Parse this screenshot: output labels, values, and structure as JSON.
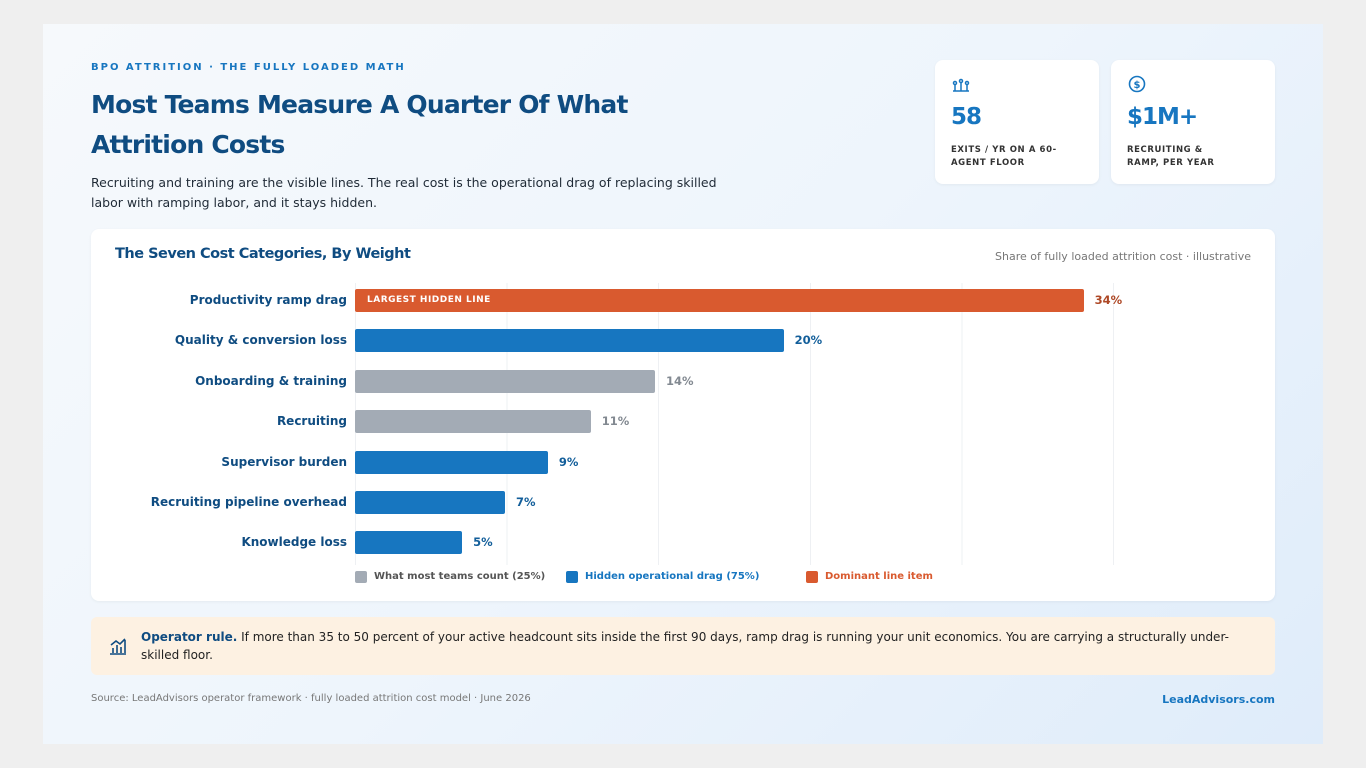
{
  "header": {
    "eyebrow": "BPO ATTRITION · THE FULLY LOADED MATH",
    "title": "Most Teams Measure A Quarter Of What Attrition Costs",
    "subtitle": "Recruiting and training are the visible lines. The real cost is the operational drag of replacing skilled labor with ramping labor, and it stays hidden."
  },
  "stats": [
    {
      "value": "58",
      "label": "EXITS / YR ON A 60-AGENT FLOOR"
    },
    {
      "value": "$1M+",
      "label": "RECRUITING & RAMP, PER YEAR"
    }
  ],
  "chart_data": {
    "type": "hbar",
    "title": "The Seven Cost Categories, By Weight",
    "subtitle": "Share of fully loaded attrition cost · illustrative",
    "categories": [
      "Productivity ramp drag",
      "Quality & conversion loss",
      "Onboarding & training",
      "Recruiting",
      "Supervisor burden",
      "Recruiting pipeline overhead",
      "Knowledge loss"
    ],
    "values": [
      34,
      20,
      14,
      11,
      9,
      7,
      5
    ],
    "value_labels": [
      "34%",
      "20%",
      "14%",
      "11%",
      "9%",
      "7%",
      "5%"
    ],
    "colors": [
      "#d95a2f",
      "#1776c0",
      "#a3abb5",
      "#a3abb5",
      "#1776c0",
      "#1776c0",
      "#1776c0"
    ],
    "bar_annotation": "LARGEST HIDDEN LINE",
    "xlim": [
      0,
      35
    ],
    "legend": [
      {
        "name": "What most teams count (25%)",
        "color": "#a3abb5"
      },
      {
        "name": "Hidden operational drag (75%)",
        "color": "#1776c0"
      },
      {
        "name": "Dominant line item",
        "color": "#d95a2f"
      }
    ]
  },
  "callout": {
    "lead": "Operator rule.",
    "text": "If more than 35 to 50 percent of your active headcount sits inside the first 90 days, ramp drag is running your unit economics. You are carrying a structurally under-skilled floor."
  },
  "footer": {
    "source": "Source: LeadAdvisors operator framework · fully loaded attrition cost model · June 2026",
    "brand": "LeadAdvisors.com"
  }
}
